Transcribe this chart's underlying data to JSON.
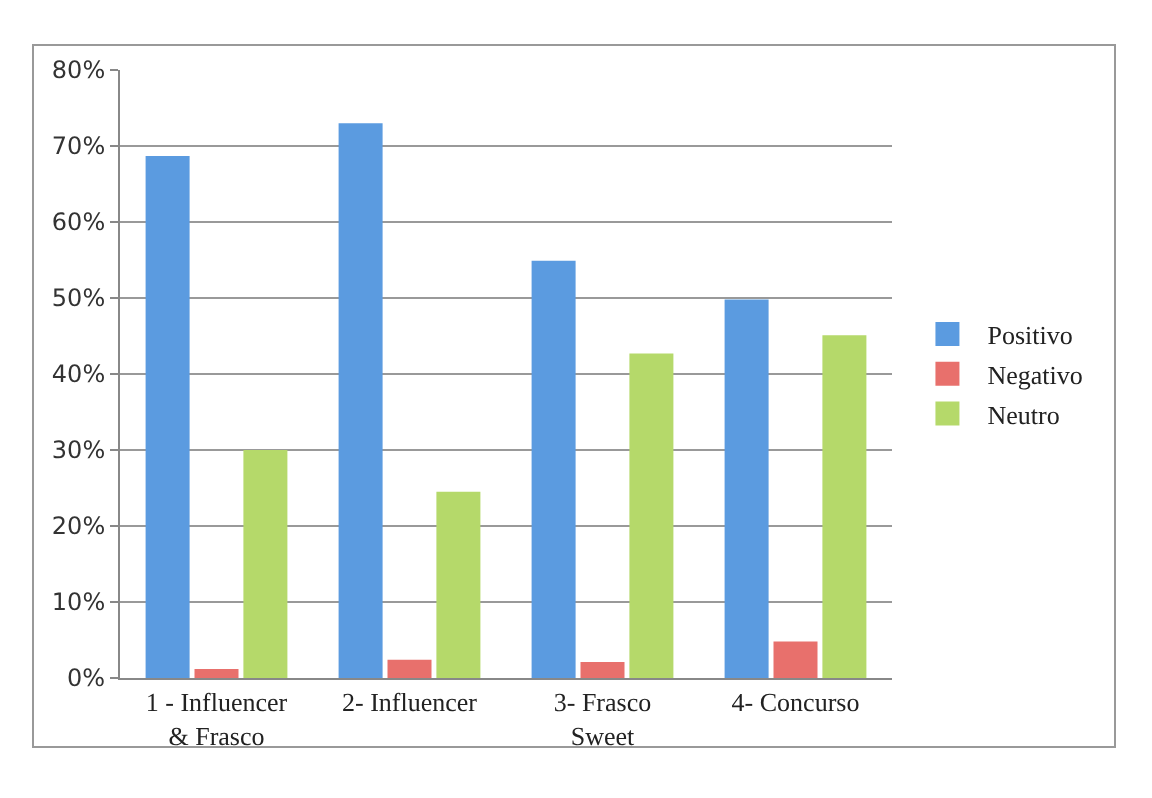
{
  "chart_data": {
    "type": "bar",
    "categories": [
      "1 - Influencer & Frasco",
      "2- Influencer",
      "3- Frasco Sweet",
      "4- Concurso"
    ],
    "series": [
      {
        "name": "Positivo",
        "color": "#5b9be0",
        "values": [
          68.7,
          73.0,
          54.9,
          49.8
        ]
      },
      {
        "name": "Negativo",
        "color": "#e8706c",
        "values": [
          1.2,
          2.4,
          2.1,
          4.8
        ]
      },
      {
        "name": "Neutro",
        "color": "#b5d96a",
        "values": [
          30.0,
          24.5,
          42.7,
          45.1
        ]
      }
    ],
    "ylim": [
      0,
      80
    ],
    "yticks": [
      {
        "value": 0,
        "label": "0%"
      },
      {
        "value": 10,
        "label": "10%"
      },
      {
        "value": 20,
        "label": "20%"
      },
      {
        "value": 30,
        "label": "30%"
      },
      {
        "value": 40,
        "label": "40%"
      },
      {
        "value": 50,
        "label": "50%"
      },
      {
        "value": 60,
        "label": "60%"
      },
      {
        "value": 70,
        "label": "70%"
      },
      {
        "value": 80,
        "label": "80%"
      }
    ],
    "grid": "y",
    "legend": "right"
  }
}
